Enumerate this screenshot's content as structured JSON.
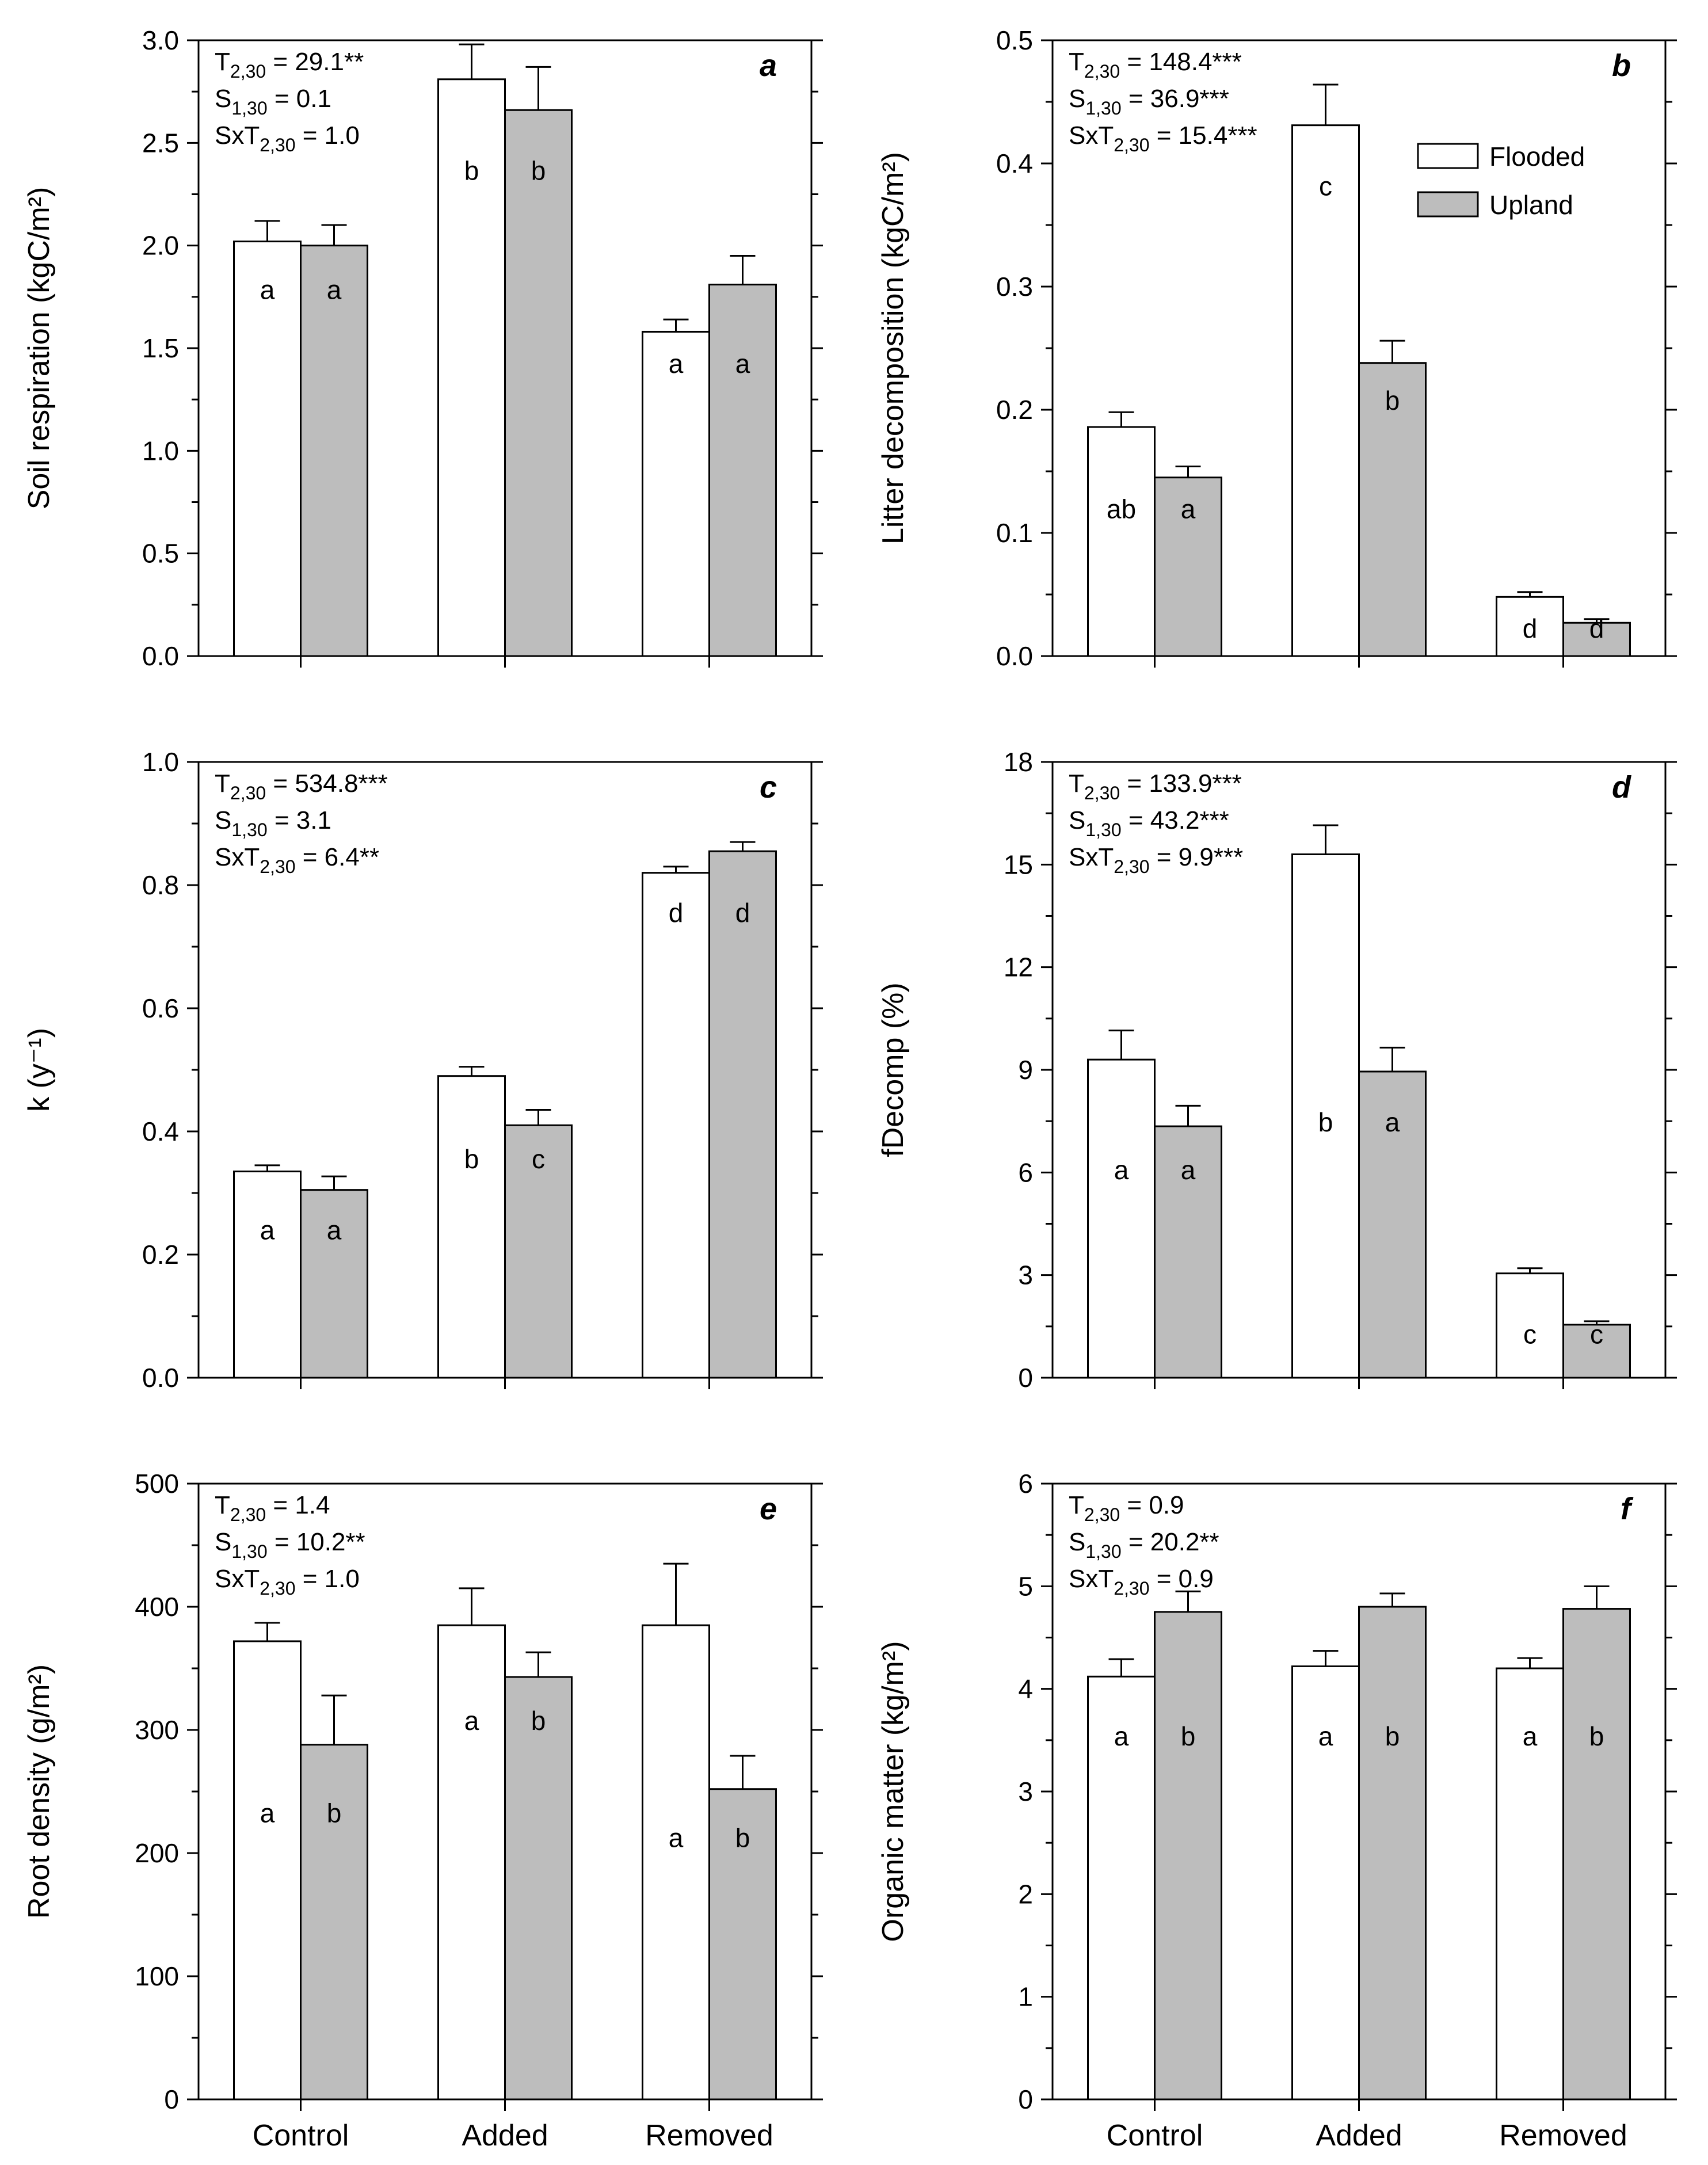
{
  "categories": [
    "Control",
    "Added",
    "Removed"
  ],
  "colors": {
    "flooded": "#ffffff",
    "upland": "#bdbdbd",
    "outline": "#000000"
  },
  "legend": {
    "entries": [
      {
        "label": "Flooded",
        "fill": "#ffffff"
      },
      {
        "label": "Upland",
        "fill": "#bdbdbd"
      }
    ]
  },
  "chart_data": [
    {
      "type": "bar",
      "panel_letter": "a",
      "ylabel": "Soil respiration (kgC/m²)",
      "ylim": [
        0,
        3.0
      ],
      "yticks": [
        "0.0",
        "0.5",
        "1.0",
        "1.5",
        "2.0",
        "2.5",
        "3.0"
      ],
      "minor_per_major": 2,
      "show_xlabels": false,
      "show_legend": false,
      "stats": [
        {
          "base": "T",
          "sub": "2,30",
          "rest": " = 29.1**"
        },
        {
          "base": "S",
          "sub": "1,30",
          "rest": " = 0.1"
        },
        {
          "base": "SxT",
          "sub": "2,30",
          "rest": " = 1.0"
        }
      ],
      "series": [
        {
          "name": "Flooded",
          "values": [
            2.02,
            2.81,
            1.58
          ],
          "errors": [
            0.1,
            0.17,
            0.06
          ],
          "letters": [
            "a",
            "b",
            "a"
          ],
          "letter_y": [
            1.74,
            2.32,
            1.38
          ]
        },
        {
          "name": "Upland",
          "values": [
            2.0,
            2.66,
            1.81
          ],
          "errors": [
            0.1,
            0.21,
            0.14
          ],
          "letters": [
            "a",
            "b",
            "a"
          ],
          "letter_y": [
            1.74,
            2.32,
            1.38
          ]
        }
      ]
    },
    {
      "type": "bar",
      "panel_letter": "b",
      "ylabel": "Litter decomposition (kgC/m²)",
      "ylim": [
        0,
        0.5
      ],
      "yticks": [
        "0.0",
        "0.1",
        "0.2",
        "0.3",
        "0.4",
        "0.5"
      ],
      "minor_per_major": 2,
      "show_xlabels": false,
      "show_legend": true,
      "stats": [
        {
          "base": "T",
          "sub": "2,30",
          "rest": " = 148.4***"
        },
        {
          "base": "S",
          "sub": "1,30",
          "rest": " = 36.9***"
        },
        {
          "base": "SxT",
          "sub": "2,30",
          "rest": " = 15.4***"
        }
      ],
      "series": [
        {
          "name": "Flooded",
          "values": [
            0.186,
            0.431,
            0.048
          ],
          "errors": [
            0.012,
            0.033,
            0.004
          ],
          "letters": [
            "ab",
            "c",
            "d"
          ],
          "letter_y": [
            0.112,
            0.374,
            0.015
          ]
        },
        {
          "name": "Upland",
          "values": [
            0.145,
            0.238,
            0.027
          ],
          "errors": [
            0.009,
            0.018,
            0.003
          ],
          "letters": [
            "a",
            "b",
            "d"
          ],
          "letter_y": [
            0.112,
            0.2,
            0.015
          ]
        }
      ]
    },
    {
      "type": "bar",
      "panel_letter": "c",
      "ylabel": "k (y⁻¹)",
      "ylim": [
        0,
        1.0
      ],
      "yticks": [
        "0.0",
        "0.2",
        "0.4",
        "0.6",
        "0.8",
        "1.0"
      ],
      "minor_per_major": 2,
      "show_xlabels": false,
      "show_legend": false,
      "stats": [
        {
          "base": "T",
          "sub": "2,30",
          "rest": " = 534.8***"
        },
        {
          "base": "S",
          "sub": "1,30",
          "rest": " = 3.1"
        },
        {
          "base": "SxT",
          "sub": "2,30",
          "rest": " = 6.4**"
        }
      ],
      "series": [
        {
          "name": "Flooded",
          "values": [
            0.335,
            0.49,
            0.82
          ],
          "errors": [
            0.01,
            0.015,
            0.01
          ],
          "letters": [
            "a",
            "b",
            "d"
          ],
          "letter_y": [
            0.225,
            0.34,
            0.74
          ]
        },
        {
          "name": "Upland",
          "values": [
            0.305,
            0.41,
            0.855
          ],
          "errors": [
            0.022,
            0.025,
            0.015
          ],
          "letters": [
            "a",
            "c",
            "d"
          ],
          "letter_y": [
            0.225,
            0.34,
            0.74
          ]
        }
      ]
    },
    {
      "type": "bar",
      "panel_letter": "d",
      "ylabel": "fDecomp (%)",
      "ylim": [
        0,
        18
      ],
      "yticks": [
        "0",
        "3",
        "6",
        "9",
        "12",
        "15",
        "18"
      ],
      "minor_per_major": 2,
      "show_xlabels": false,
      "show_legend": false,
      "stats": [
        {
          "base": "T",
          "sub": "2,30",
          "rest": " = 133.9***"
        },
        {
          "base": "S",
          "sub": "1,30",
          "rest": " = 43.2***"
        },
        {
          "base": "SxT",
          "sub": "2,30",
          "rest": " = 9.9***"
        }
      ],
      "series": [
        {
          "name": "Flooded",
          "values": [
            9.3,
            15.3,
            3.05
          ],
          "errors": [
            0.85,
            0.85,
            0.15
          ],
          "letters": [
            "a",
            "b",
            "c"
          ],
          "letter_y": [
            5.8,
            7.2,
            1.0
          ]
        },
        {
          "name": "Upland",
          "values": [
            7.35,
            8.95,
            1.55
          ],
          "errors": [
            0.6,
            0.7,
            0.1
          ],
          "letters": [
            "a",
            "a",
            "c"
          ],
          "letter_y": [
            5.8,
            7.2,
            1.0
          ]
        }
      ]
    },
    {
      "type": "bar",
      "panel_letter": "e",
      "ylabel": "Root density (g/m²)",
      "ylim": [
        0,
        500
      ],
      "yticks": [
        "0",
        "100",
        "200",
        "300",
        "400",
        "500"
      ],
      "minor_per_major": 2,
      "show_xlabels": true,
      "show_legend": false,
      "stats": [
        {
          "base": "T",
          "sub": "2,30",
          "rest": " = 1.4"
        },
        {
          "base": "S",
          "sub": "1,30",
          "rest": " = 10.2**"
        },
        {
          "base": "SxT",
          "sub": "2,30",
          "rest": " = 1.0"
        }
      ],
      "series": [
        {
          "name": "Flooded",
          "values": [
            372,
            385,
            385
          ],
          "errors": [
            15,
            30,
            50
          ],
          "letters": [
            "a",
            "a",
            "a"
          ],
          "letter_y": [
            225,
            300,
            205
          ]
        },
        {
          "name": "Upland",
          "values": [
            288,
            343,
            252
          ],
          "errors": [
            40,
            20,
            27
          ],
          "letters": [
            "b",
            "b",
            "b"
          ],
          "letter_y": [
            225,
            300,
            205
          ]
        }
      ]
    },
    {
      "type": "bar",
      "panel_letter": "f",
      "ylabel": "Organic matter (kg/m²)",
      "ylim": [
        0,
        6
      ],
      "yticks": [
        "0",
        "1",
        "2",
        "3",
        "4",
        "5",
        "6"
      ],
      "minor_per_major": 2,
      "show_xlabels": true,
      "show_legend": false,
      "stats": [
        {
          "base": "T",
          "sub": "2,30",
          "rest": " = 0.9"
        },
        {
          "base": "S",
          "sub": "1,30",
          "rest": " = 20.2**"
        },
        {
          "base": "SxT",
          "sub": "2,30",
          "rest": " = 0.9"
        }
      ],
      "series": [
        {
          "name": "Flooded",
          "values": [
            4.12,
            4.22,
            4.2
          ],
          "errors": [
            0.17,
            0.15,
            0.1
          ],
          "letters": [
            "a",
            "a",
            "a"
          ],
          "letter_y": [
            3.45,
            3.45,
            3.45
          ]
        },
        {
          "name": "Upland",
          "values": [
            4.75,
            4.8,
            4.78
          ],
          "errors": [
            0.2,
            0.13,
            0.22
          ],
          "letters": [
            "b",
            "b",
            "b"
          ],
          "letter_y": [
            3.45,
            3.45,
            3.45
          ]
        }
      ]
    }
  ]
}
